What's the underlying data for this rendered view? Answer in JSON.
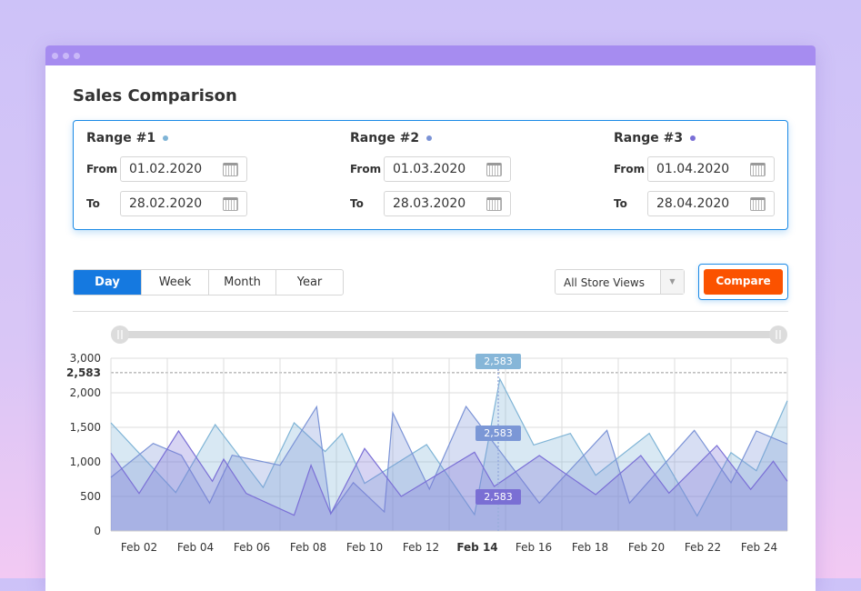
{
  "title": "Sales Comparison",
  "ranges": [
    {
      "title": "Range #1",
      "color": "#7fb4d6",
      "from_label": "From",
      "from": "01.02.2020",
      "to_label": "To",
      "to": "28.02.2020"
    },
    {
      "title": "Range #2",
      "color": "#7b93d6",
      "from_label": "From",
      "from": "01.03.2020",
      "to_label": "To",
      "to": "28.03.2020"
    },
    {
      "title": "Range #3",
      "color": "#7a6fd6",
      "from_label": "From",
      "from": "01.04.2020",
      "to_label": "To",
      "to": "28.04.2020"
    }
  ],
  "period_tabs": [
    {
      "label": "Day",
      "active": true
    },
    {
      "label": "Week"
    },
    {
      "label": "Month"
    },
    {
      "label": "Year"
    }
  ],
  "store_select": {
    "value": "All Store Views"
  },
  "compare_label": "Compare",
  "tooltips": [
    "2,583",
    "2,583",
    "2,583"
  ],
  "chart_data": {
    "type": "area",
    "y_ticks": [
      0,
      500,
      1000,
      1500,
      2000,
      2583,
      3000
    ],
    "y_tick_labels": [
      "0",
      "500",
      "1,000",
      "1,500",
      "2,000",
      "2,583",
      "3,000"
    ],
    "highlight_y": 2583,
    "x_labels": [
      "Feb 02",
      "Feb 04",
      "Feb 06",
      "Feb 08",
      "Feb 10",
      "Feb 12",
      "Feb 14",
      "Feb 16",
      "Feb 18",
      "Feb 20",
      "Feb 22",
      "Feb 24"
    ],
    "x_label_days": [
      2,
      4,
      6,
      8,
      10,
      12,
      14,
      16,
      18,
      20,
      22,
      24
    ],
    "active_label": "Feb 14",
    "xlim": [
      1,
      25
    ],
    "grid": true,
    "series": [
      {
        "color": "#7fb4d6",
        "points": [
          [
            1,
            1566
          ],
          [
            3.3,
            557
          ],
          [
            4.7,
            1540
          ],
          [
            6.4,
            630
          ],
          [
            7.5,
            1566
          ],
          [
            8.6,
            1150
          ],
          [
            9.2,
            1410
          ],
          [
            10,
            690
          ],
          [
            12.2,
            1250
          ],
          [
            13.9,
            237
          ],
          [
            14.8,
            2400
          ],
          [
            16,
            1245
          ],
          [
            17.3,
            1412
          ],
          [
            18.2,
            807
          ],
          [
            20.1,
            1412
          ],
          [
            21.8,
            219
          ],
          [
            23,
            1136
          ],
          [
            23.9,
            873
          ],
          [
            25,
            1886
          ]
        ]
      },
      {
        "color": "#7b93d6",
        "points": [
          [
            1,
            776
          ],
          [
            2.5,
            1267
          ],
          [
            3.5,
            1096
          ],
          [
            4.5,
            404
          ],
          [
            5.3,
            1096
          ],
          [
            7,
            951
          ],
          [
            8.3,
            1799
          ],
          [
            8.8,
            250
          ],
          [
            9.6,
            700
          ],
          [
            10.7,
            276
          ],
          [
            11,
            1711
          ],
          [
            12.3,
            605
          ],
          [
            13.6,
            1803
          ],
          [
            16.2,
            404
          ],
          [
            18.6,
            1456
          ],
          [
            19.4,
            404
          ],
          [
            21.7,
            1456
          ],
          [
            23,
            697
          ],
          [
            23.9,
            1447
          ],
          [
            25,
            1259
          ]
        ]
      },
      {
        "color": "#7a6fd6",
        "points": [
          [
            1,
            1127
          ],
          [
            2,
            543
          ],
          [
            3.4,
            1447
          ],
          [
            4.6,
            720
          ],
          [
            5,
            1039
          ],
          [
            5.8,
            543
          ],
          [
            7.5,
            228
          ],
          [
            8.1,
            951
          ],
          [
            8.8,
            250
          ],
          [
            10,
            1193
          ],
          [
            11.3,
            500
          ],
          [
            13.9,
            1141
          ],
          [
            14.6,
            645
          ],
          [
            16.2,
            1092
          ],
          [
            18.2,
            526
          ],
          [
            19.8,
            1092
          ],
          [
            20.8,
            549
          ],
          [
            22.5,
            1237
          ],
          [
            23.7,
            601
          ],
          [
            24.5,
            1009
          ],
          [
            25,
            720
          ]
        ]
      }
    ]
  }
}
